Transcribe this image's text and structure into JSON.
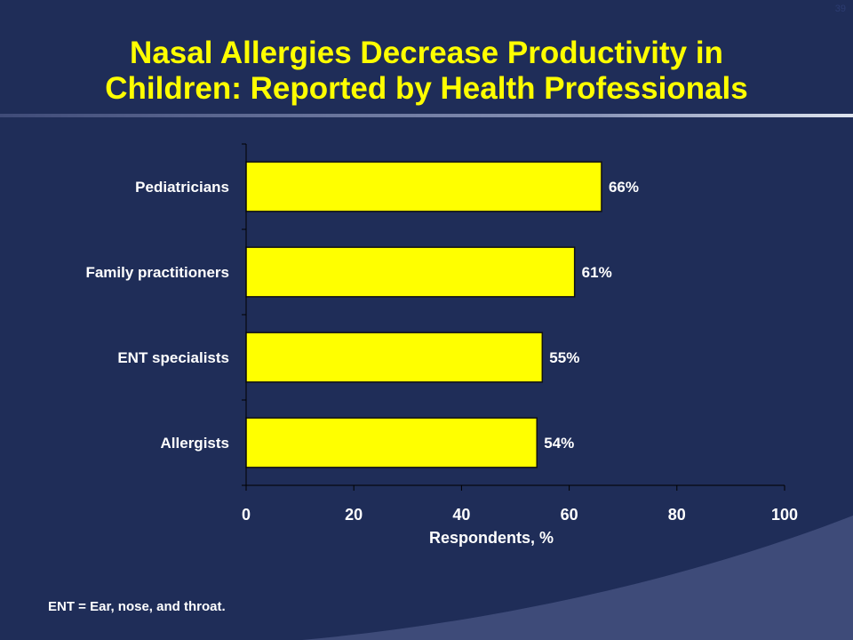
{
  "slide": {
    "number": "39",
    "title_line1": "Nasal Allergies Decrease Productivity in",
    "title_line2": "Children: Reported by Health Professionals",
    "footnote": "ENT = Ear, nose, and throat."
  },
  "colors": {
    "background": "#1f2d58",
    "title": "#ffff00",
    "bar_fill": "#ffff00",
    "bar_stroke": "#111111",
    "text": "#ffffff",
    "axis": "#000000"
  },
  "chart_data": {
    "type": "bar",
    "orientation": "horizontal",
    "categories": [
      "Pediatricians",
      "Family practitioners",
      "ENT specialists",
      "Allergists"
    ],
    "values": [
      66,
      61,
      55,
      54
    ],
    "value_labels": [
      "66%",
      "61%",
      "55%",
      "54%"
    ],
    "xlabel": "Respondents, %",
    "ylabel": "",
    "xlim": [
      0,
      100
    ],
    "xticks": [
      0,
      20,
      40,
      60,
      80,
      100
    ],
    "xtick_labels": [
      "0",
      "20",
      "40",
      "60",
      "80",
      "100"
    ],
    "grid": false,
    "legend": "none"
  }
}
